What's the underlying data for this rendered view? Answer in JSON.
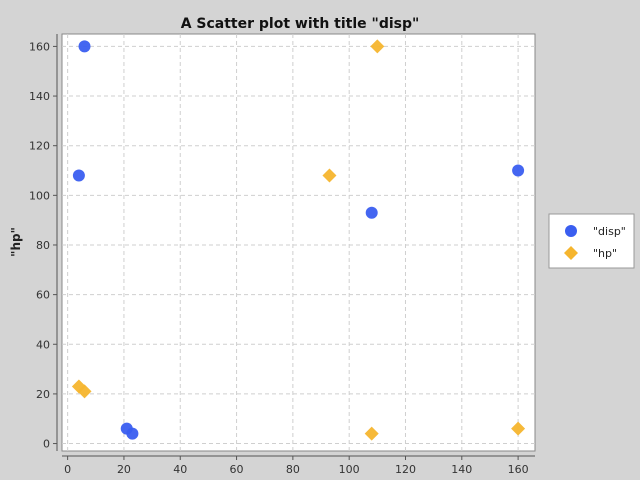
{
  "chart_data": {
    "type": "scatter",
    "title": "A Scatter plot with title \"disp\"",
    "xlabel": "",
    "ylabel": "\"hp\"",
    "xlim": [
      -2,
      166
    ],
    "ylim": [
      -3,
      165
    ],
    "x_ticks": [
      0,
      20,
      40,
      60,
      80,
      100,
      120,
      140,
      160
    ],
    "y_ticks": [
      0,
      20,
      40,
      60,
      80,
      100,
      120,
      140,
      160
    ],
    "grid": true,
    "legend_position": "right",
    "series": [
      {
        "name": "\"disp\"",
        "marker": "circle",
        "color": "#3a5ef0",
        "points": [
          {
            "x": 6,
            "y": 160
          },
          {
            "x": 4,
            "y": 108
          },
          {
            "x": 160,
            "y": 110
          },
          {
            "x": 108,
            "y": 93
          },
          {
            "x": 21,
            "y": 6
          },
          {
            "x": 23,
            "y": 4
          }
        ]
      },
      {
        "name": "\"hp\"",
        "marker": "diamond",
        "color": "#f5b52e",
        "points": [
          {
            "x": 110,
            "y": 160
          },
          {
            "x": 93,
            "y": 108
          },
          {
            "x": 4,
            "y": 23
          },
          {
            "x": 6,
            "y": 21
          },
          {
            "x": 108,
            "y": 4
          },
          {
            "x": 160,
            "y": 6
          }
        ]
      }
    ]
  }
}
